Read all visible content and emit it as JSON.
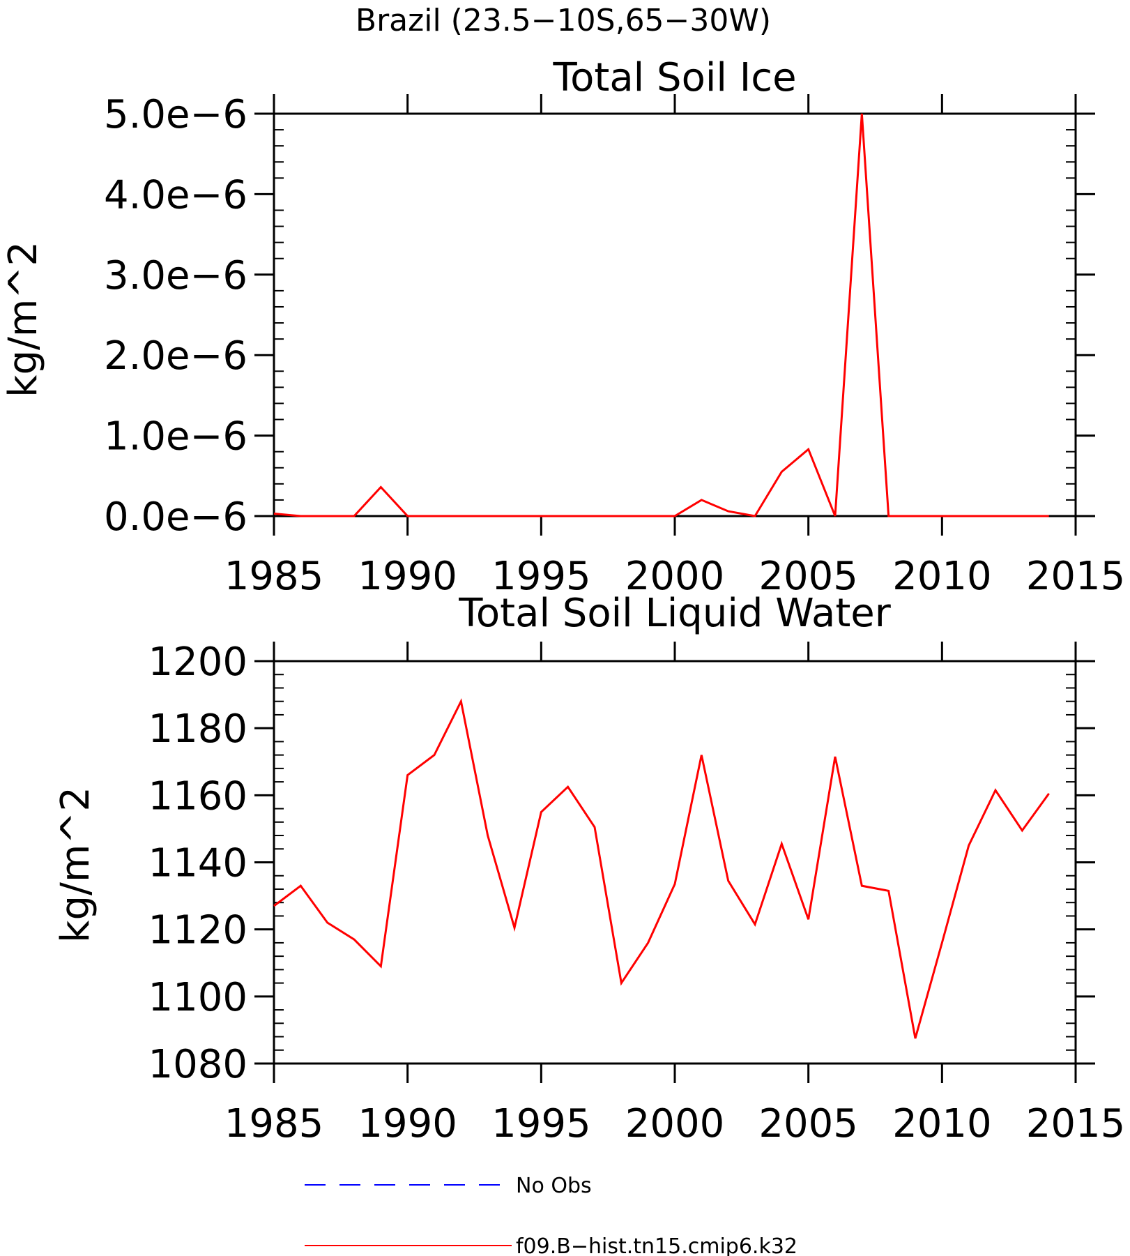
{
  "chart_data": [
    {
      "type": "line",
      "title": "Brazil (23.5−10S,65−30W)",
      "subtitle": "Total Soil Ice",
      "ylabel": "kg/m^2",
      "xlabel": "",
      "xlim": [
        1985,
        2015
      ],
      "ylim": [
        0,
        5e-06
      ],
      "x_ticks": [
        "1985",
        "1990",
        "1995",
        "2000",
        "2005",
        "2010",
        "2015"
      ],
      "y_ticks": [
        {
          "value": 0.0,
          "label": "0.0e−6"
        },
        {
          "value": 1e-06,
          "label": "1.0e−6"
        },
        {
          "value": 2e-06,
          "label": "2.0e−6"
        },
        {
          "value": 3e-06,
          "label": "3.0e−6"
        },
        {
          "value": 4e-06,
          "label": "4.0e−6"
        },
        {
          "value": 5e-06,
          "label": "5.0e−6"
        }
      ],
      "grid": false,
      "series": [
        {
          "name": "f09.B−hist.tn15.cmip6.k32",
          "color": "#ff0000",
          "x": [
            1985,
            1986,
            1987,
            1988,
            1989,
            1990,
            1991,
            1992,
            1993,
            1994,
            1995,
            1996,
            1997,
            1998,
            1999,
            2000,
            2001,
            2002,
            2003,
            2004,
            2005,
            2006,
            2007,
            2008,
            2009,
            2010,
            2011,
            2012,
            2013,
            2014
          ],
          "values": [
            3e-08,
            0,
            0,
            0,
            3.6e-07,
            0,
            0,
            0,
            0,
            0,
            0,
            0,
            0,
            0,
            0,
            0,
            2e-07,
            6e-08,
            0,
            5.5e-07,
            8.3e-07,
            0,
            5e-06,
            0,
            0,
            0,
            0,
            0,
            0,
            0
          ]
        }
      ]
    },
    {
      "type": "line",
      "title": "",
      "subtitle": "Total Soil Liquid Water",
      "ylabel": "kg/m^2",
      "xlabel": "",
      "xlim": [
        1985,
        2015
      ],
      "ylim": [
        1080,
        1200
      ],
      "x_ticks": [
        "1985",
        "1990",
        "1995",
        "2000",
        "2005",
        "2010",
        "2015"
      ],
      "y_ticks": [
        {
          "value": 1080,
          "label": "1080"
        },
        {
          "value": 1100,
          "label": "1100"
        },
        {
          "value": 1120,
          "label": "1120"
        },
        {
          "value": 1140,
          "label": "1140"
        },
        {
          "value": 1160,
          "label": "1160"
        },
        {
          "value": 1180,
          "label": "1180"
        },
        {
          "value": 1200,
          "label": "1200"
        }
      ],
      "grid": false,
      "series": [
        {
          "name": "f09.B−hist.tn15.cmip6.k32",
          "color": "#ff0000",
          "x": [
            1985,
            1986,
            1987,
            1988,
            1989,
            1990,
            1991,
            1992,
            1993,
            1994,
            1995,
            1996,
            1997,
            1998,
            1999,
            2000,
            2001,
            2002,
            2003,
            2004,
            2005,
            2006,
            2007,
            2008,
            2009,
            2010,
            2011,
            2012,
            2013,
            2014
          ],
          "values": [
            1127,
            1133,
            1122,
            1117,
            1109,
            1166,
            1172,
            1188,
            1148,
            1120.5,
            1155,
            1162.5,
            1150.5,
            1104,
            1116,
            1133.5,
            1172,
            1134.5,
            1121.5,
            1145.5,
            1123,
            1171.5,
            1133,
            1131.5,
            1087.5,
            1116,
            1145,
            1161.5,
            1149.5,
            1160.5
          ]
        }
      ]
    }
  ],
  "legend": {
    "placement": "bottom-center",
    "entries": [
      {
        "label": "No Obs",
        "color": "#0000ff",
        "style": "dashed"
      },
      {
        "label": "f09.B−hist.tn15.cmip6.k32",
        "color": "#ff0000",
        "style": "solid"
      }
    ]
  }
}
